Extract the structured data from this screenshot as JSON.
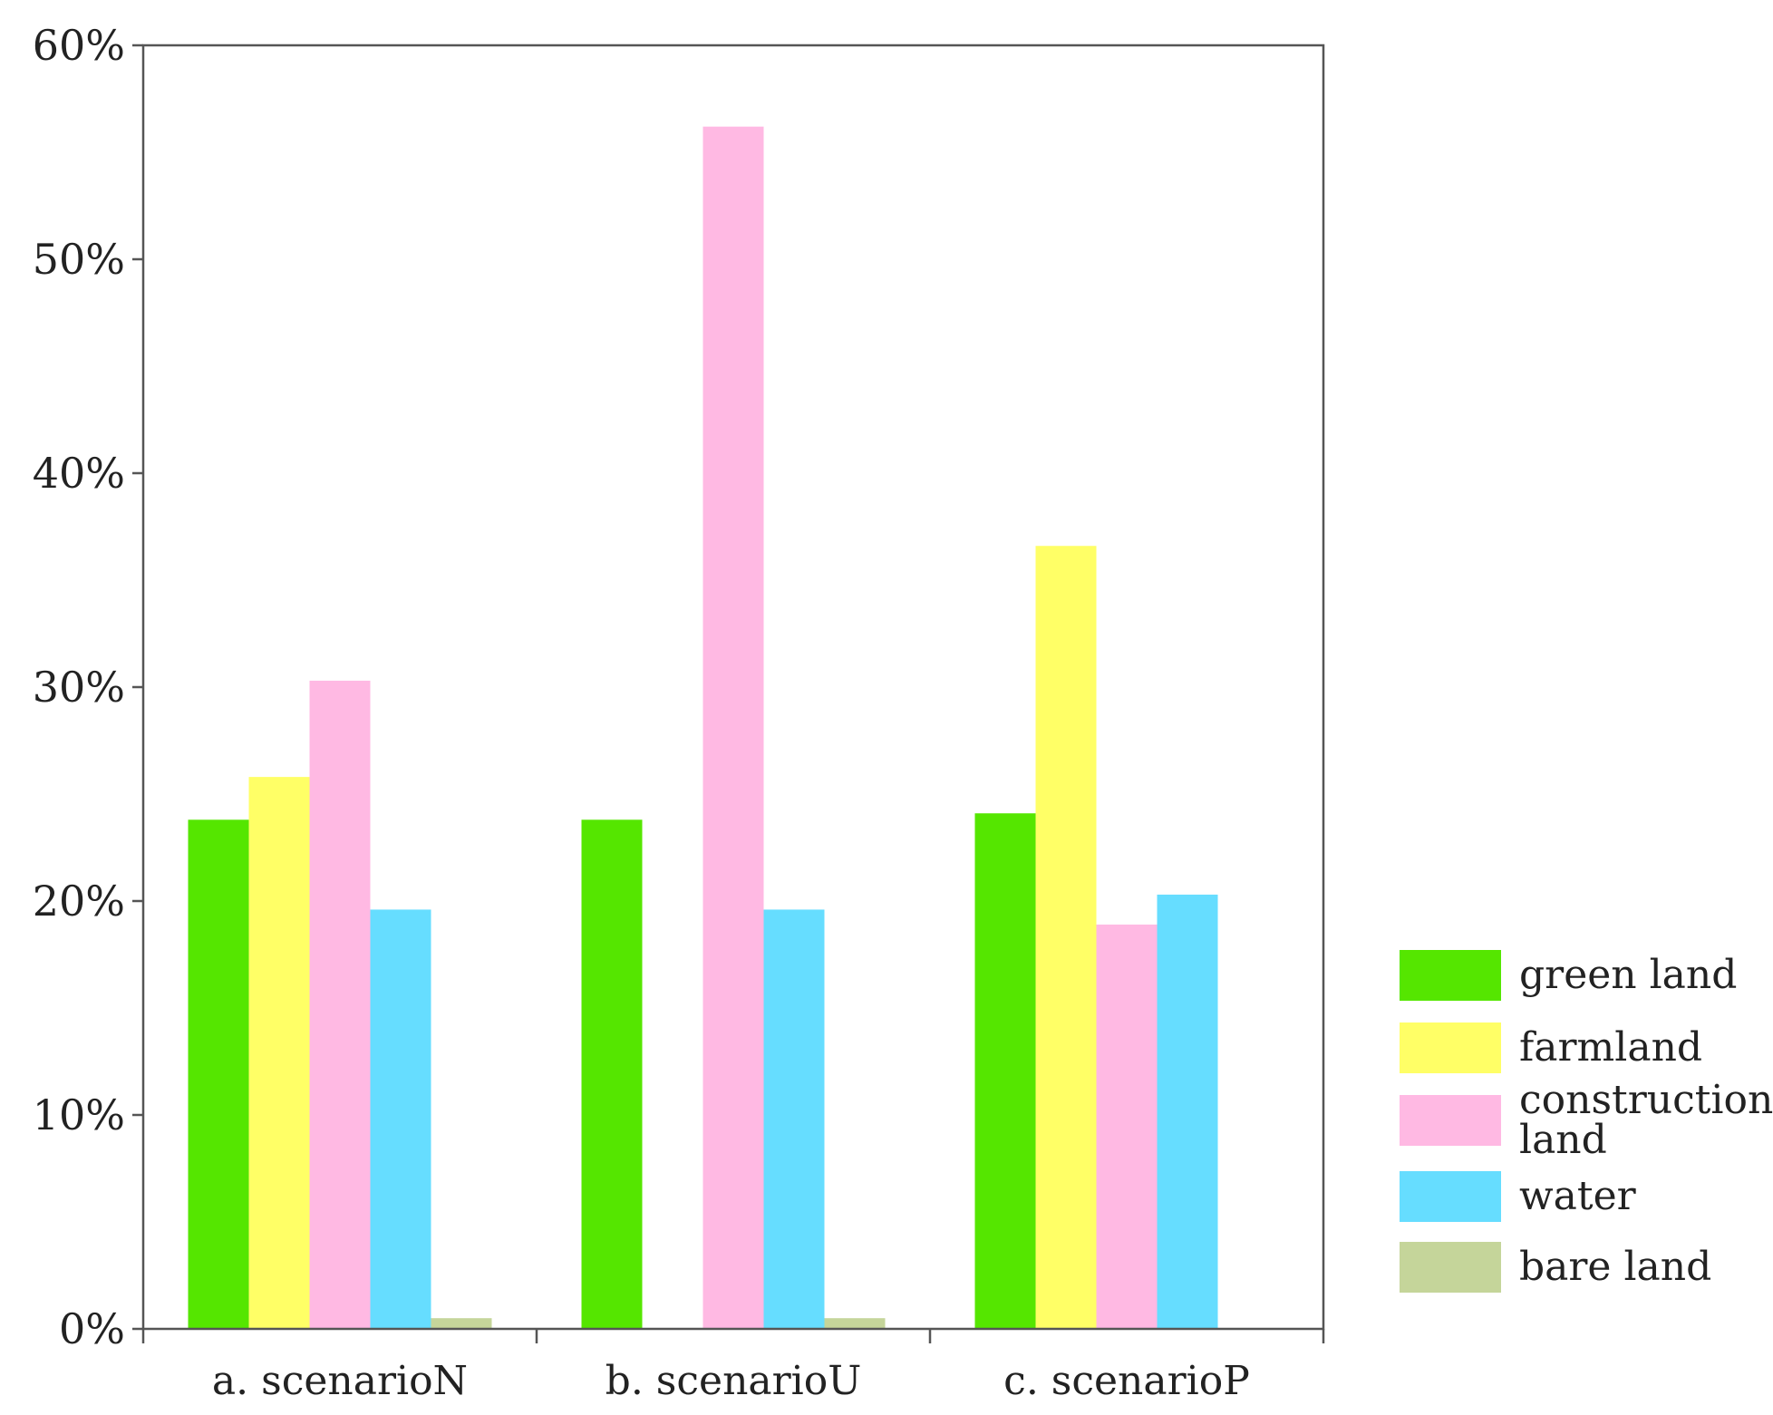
{
  "chart_data": {
    "type": "bar",
    "categories": [
      "a. scenarioN",
      "b. scenarioU",
      "c. scenarioP"
    ],
    "series": [
      {
        "name": "green land",
        "color": "#55e600",
        "values": [
          23.8,
          23.8,
          24.1
        ]
      },
      {
        "name": "farmland",
        "color": "#ffff66",
        "values": [
          25.8,
          null,
          36.6
        ]
      },
      {
        "name": "construction land",
        "color": "#ffb9e3",
        "values": [
          30.3,
          56.2,
          18.9
        ]
      },
      {
        "name": "water",
        "color": "#66ddff",
        "values": [
          19.6,
          19.6,
          20.3
        ]
      },
      {
        "name": "bare land",
        "color": "#c5d59a",
        "values": [
          0.5,
          0.5,
          null
        ]
      }
    ],
    "yticks": [
      "0%",
      "10%",
      "20%",
      "30%",
      "40%",
      "50%",
      "60%"
    ],
    "ylim": [
      0,
      60
    ],
    "legend": {
      "placement": "right-bottom",
      "entries": [
        {
          "lines": [
            "green land"
          ],
          "color": "#55e600"
        },
        {
          "lines": [
            "farmland"
          ],
          "color": "#ffff66"
        },
        {
          "lines": [
            "construction",
            "land"
          ],
          "color": "#ffb9e3"
        },
        {
          "lines": [
            "water"
          ],
          "color": "#66ddff"
        },
        {
          "lines": [
            "bare land"
          ],
          "color": "#c5d59a"
        }
      ]
    },
    "grid": false
  }
}
